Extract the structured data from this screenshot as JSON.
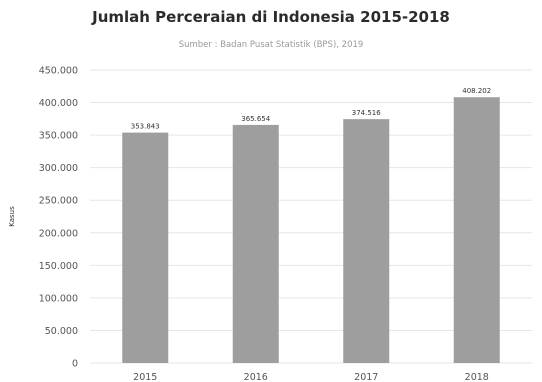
{
  "chart_data": {
    "type": "bar",
    "title": "Jumlah Perceraian di Indonesia 2015-2018",
    "subtitle": "Sumber : Badan Pusat Statistik (BPS), 2019",
    "xlabel": "",
    "ylabel": "Kasus",
    "categories": [
      "2015",
      "2016",
      "2017",
      "2018"
    ],
    "values": [
      353843,
      365654,
      374516,
      408202
    ],
    "value_labels": [
      "353.843",
      "365.654",
      "374.516",
      "408.202"
    ],
    "ylim": [
      0,
      450000
    ],
    "yticks": [
      0,
      50000,
      100000,
      150000,
      200000,
      250000,
      300000,
      350000,
      400000,
      450000
    ],
    "ytick_labels": [
      "0",
      "50.000",
      "100.000",
      "150.000",
      "200.000",
      "250.000",
      "300.000",
      "350.000",
      "400.000",
      "450.000"
    ],
    "grid": true,
    "legend": "none",
    "bar_color": "#9e9e9e",
    "grid_color": "#e6e6e6"
  }
}
